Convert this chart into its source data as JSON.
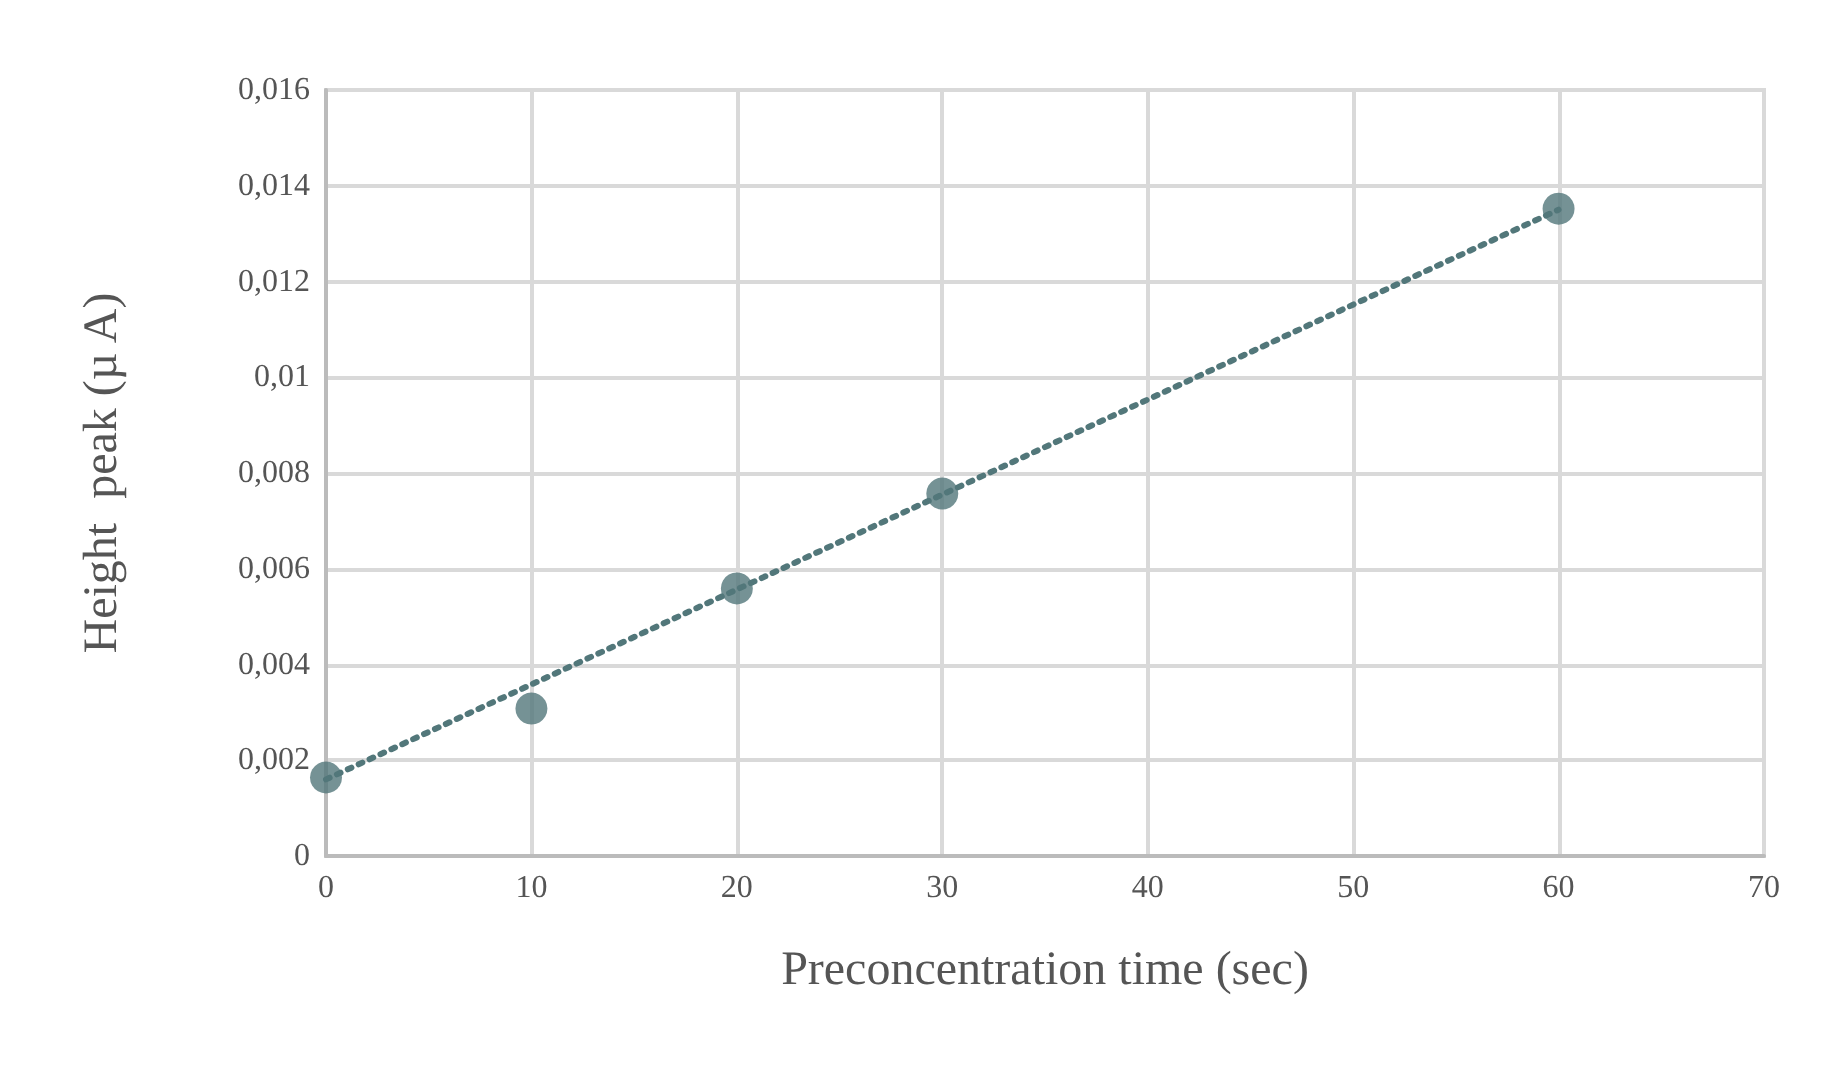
{
  "chart_data": {
    "type": "scatter",
    "xlabel": "Preconcentration time (sec)",
    "ylabel": "Height  peak (µ A)",
    "series": [
      {
        "color": "#52777a",
        "marker": "circle",
        "x": [
          0,
          10,
          20,
          30,
          60
        ],
        "values": [
          0.00164,
          0.00308,
          0.00559,
          0.00757,
          0.01352
        ]
      },
      {
        "type": "line",
        "color": "#52777a",
        "marker": "none",
        "line_style": "dotted",
        "x": [
          0,
          60
        ],
        "values": [
          0.0016,
          0.0135
        ]
      }
    ],
    "xlim": [
      0,
      70
    ],
    "xticks": [
      0,
      10,
      20,
      30,
      40,
      50,
      60,
      70
    ],
    "ylim": [
      0,
      0.016
    ],
    "yticks": [
      0,
      {
        "value": 0.002,
        "label": "0,002"
      },
      {
        "value": 0.004,
        "label": "0,004"
      },
      {
        "value": 0.006,
        "label": "0,006"
      },
      {
        "value": 0.008,
        "label": "0,008"
      },
      {
        "value": 0.01,
        "label": "0,01"
      },
      {
        "value": 0.012,
        "label": "0,012"
      },
      {
        "value": 0.014,
        "label": "0,014"
      },
      {
        "value": 0.016,
        "label": "0,016"
      }
    ],
    "grid": true
  }
}
